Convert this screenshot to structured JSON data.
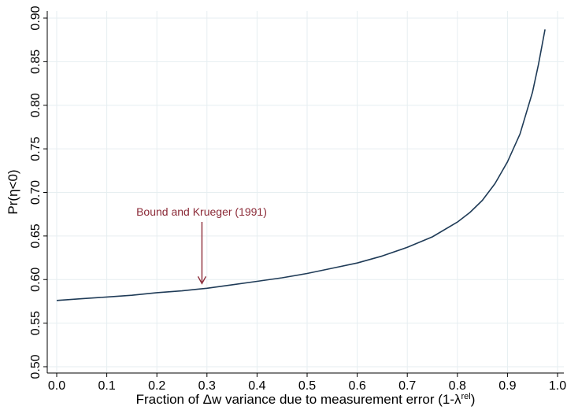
{
  "chart_data": {
    "type": "line",
    "xlabel": "Fraction of Δw variance due to measurement error (1-λ",
    "xlabel_sup": "rel",
    "xlabel_end": ")",
    "ylabel": "Pr(η<0)",
    "xlim": [
      0.0,
      1.0
    ],
    "ylim": [
      0.5,
      0.9
    ],
    "xticks": [
      "0.0",
      "0.1",
      "0.2",
      "0.3",
      "0.4",
      "0.5",
      "0.6",
      "0.7",
      "0.8",
      "0.9",
      "1.0"
    ],
    "yticks": [
      "0.50",
      "0.55",
      "0.60",
      "0.65",
      "0.70",
      "0.75",
      "0.80",
      "0.85",
      "0.90"
    ],
    "grid": true,
    "line_color": "#1f3b57",
    "annotation_color": "#8b2a37",
    "annotation": {
      "text": "Bound and Krueger (1991)",
      "x": 0.29,
      "y": 0.59
    },
    "series": [
      {
        "x": [
          0.0,
          0.05,
          0.1,
          0.15,
          0.2,
          0.25,
          0.3,
          0.35,
          0.4,
          0.45,
          0.5,
          0.55,
          0.6,
          0.65,
          0.7,
          0.75,
          0.8,
          0.825,
          0.85,
          0.875,
          0.9,
          0.925,
          0.95,
          0.962,
          0.975
        ],
        "y": [
          0.576,
          0.578,
          0.58,
          0.582,
          0.585,
          0.587,
          0.59,
          0.594,
          0.598,
          0.602,
          0.607,
          0.613,
          0.619,
          0.627,
          0.637,
          0.649,
          0.666,
          0.677,
          0.691,
          0.71,
          0.735,
          0.767,
          0.815,
          0.847,
          0.887
        ]
      }
    ]
  }
}
